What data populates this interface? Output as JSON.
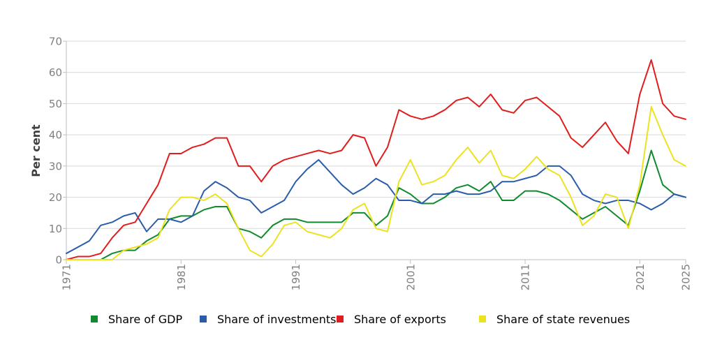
{
  "chart_data": {
    "type": "line",
    "ylabel": "Per cent",
    "ylim": [
      0,
      70
    ],
    "yticks": [
      0,
      10,
      20,
      30,
      40,
      50,
      60,
      70
    ],
    "xlim": [
      1971,
      2025
    ],
    "xticks": [
      1971,
      1981,
      1991,
      2001,
      2011,
      2021,
      2025
    ],
    "grid": "horizontal",
    "legend": "bottom",
    "x": [
      1971,
      1972,
      1973,
      1974,
      1975,
      1976,
      1977,
      1978,
      1979,
      1980,
      1981,
      1982,
      1983,
      1984,
      1985,
      1986,
      1987,
      1988,
      1989,
      1990,
      1991,
      1992,
      1993,
      1994,
      1995,
      1996,
      1997,
      1998,
      1999,
      2000,
      2001,
      2002,
      2003,
      2004,
      2005,
      2006,
      2007,
      2008,
      2009,
      2010,
      2011,
      2012,
      2013,
      2014,
      2015,
      2016,
      2017,
      2018,
      2019,
      2020,
      2021,
      2022,
      2023,
      2024,
      2025
    ],
    "series": [
      {
        "name": "Share of GDP",
        "color": "#118a2e",
        "values": [
          0,
          0,
          0,
          0,
          2,
          3,
          3,
          6,
          8,
          13,
          14,
          14,
          16,
          17,
          17,
          10,
          9,
          7,
          11,
          13,
          13,
          12,
          12,
          12,
          12,
          15,
          15,
          11,
          14,
          23,
          21,
          18,
          18,
          20,
          23,
          24,
          22,
          25,
          19,
          19,
          22,
          22,
          21,
          19,
          16,
          13,
          15,
          17,
          14,
          11,
          22,
          35,
          24,
          21,
          20
        ]
      },
      {
        "name": "Share of investments",
        "color": "#2a5caa",
        "values": [
          2,
          4,
          6,
          11,
          12,
          14,
          15,
          9,
          13,
          13,
          12,
          14,
          22,
          25,
          23,
          20,
          19,
          15,
          17,
          19,
          25,
          29,
          32,
          28,
          24,
          21,
          23,
          26,
          24,
          19,
          19,
          18,
          21,
          21,
          22,
          21,
          21,
          22,
          25,
          25,
          26,
          27,
          30,
          30,
          27,
          21,
          19,
          18,
          19,
          19,
          18,
          16,
          18,
          21,
          20
        ]
      },
      {
        "name": "Share of exports",
        "color": "#e11c1c",
        "values": [
          0,
          1,
          1,
          2,
          7,
          11,
          12,
          18,
          24,
          34,
          34,
          36,
          37,
          39,
          39,
          30,
          30,
          25,
          30,
          32,
          33,
          34,
          35,
          34,
          35,
          40,
          39,
          30,
          36,
          48,
          46,
          45,
          46,
          48,
          51,
          52,
          49,
          53,
          48,
          47,
          51,
          52,
          49,
          46,
          39,
          36,
          40,
          44,
          38,
          34,
          53,
          64,
          50,
          46,
          45
        ]
      },
      {
        "name": "Share of state revenues",
        "color": "#ede220",
        "values": [
          0,
          0,
          0,
          0,
          0,
          3,
          4,
          5,
          7,
          16,
          20,
          20,
          19,
          21,
          18,
          10,
          3,
          1,
          5,
          11,
          12,
          9,
          8,
          7,
          10,
          16,
          18,
          10,
          9,
          25,
          32,
          24,
          25,
          27,
          32,
          36,
          31,
          35,
          27,
          26,
          29,
          33,
          29,
          27,
          20,
          11,
          14,
          21,
          20,
          10,
          24,
          49,
          40,
          32,
          30
        ]
      }
    ]
  }
}
